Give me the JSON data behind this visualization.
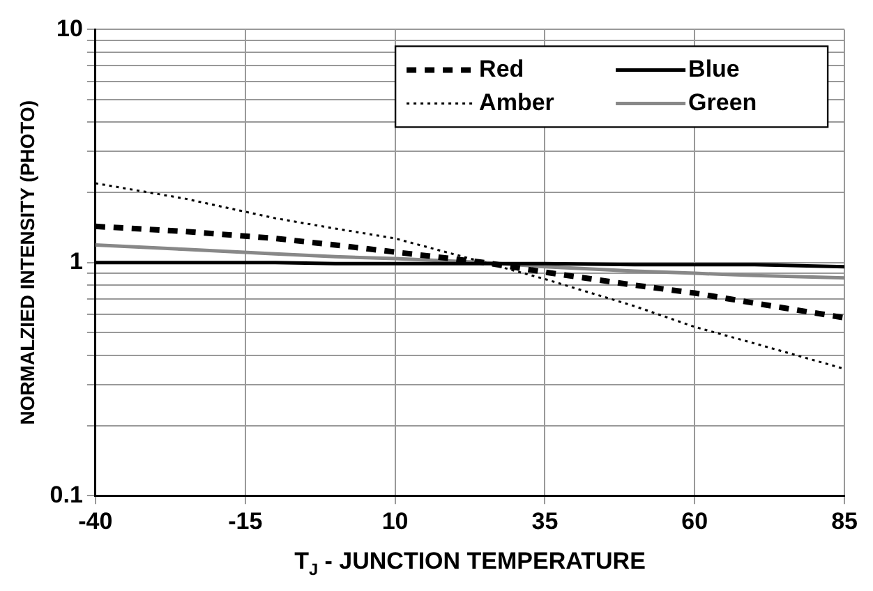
{
  "chart_data": {
    "type": "line",
    "xlabel": "T$_{J}$ - JUNCTION TEMPERATURE",
    "ylabel": "NORMALZIED INTENSITY (PHOTO)",
    "x": [
      -40,
      -25,
      -10,
      0,
      10,
      25,
      35,
      50,
      60,
      70,
      85
    ],
    "series": [
      {
        "name": "Red",
        "color": "#000000",
        "line_style": "dashed",
        "values": [
          1.43,
          1.36,
          1.27,
          1.19,
          1.11,
          1.0,
          0.91,
          0.8,
          0.74,
          0.67,
          0.58
        ]
      },
      {
        "name": "Amber",
        "color": "#000000",
        "line_style": "dotted",
        "values": [
          2.19,
          1.88,
          1.55,
          1.4,
          1.27,
          1.0,
          0.85,
          0.65,
          0.53,
          0.45,
          0.35
        ]
      },
      {
        "name": "Blue",
        "color": "#000000",
        "line_style": "solid",
        "values": [
          1.0,
          1.0,
          1.0,
          0.99,
          0.99,
          0.99,
          0.99,
          0.98,
          0.98,
          0.98,
          0.96
        ]
      },
      {
        "name": "Green",
        "color": "#888888",
        "line_style": "solid",
        "values": [
          1.19,
          1.14,
          1.09,
          1.06,
          1.04,
          1.0,
          0.96,
          0.92,
          0.9,
          0.88,
          0.86
        ]
      }
    ],
    "xlim": [
      -40,
      85
    ],
    "xticks": [
      -40,
      -15,
      10,
      35,
      60,
      85
    ],
    "ylim": [
      0.1,
      10
    ],
    "yticks": [
      0.1,
      {
        "value": 0.2,
        "label": null
      },
      {
        "value": 0.3,
        "label": null
      },
      {
        "value": 0.4,
        "label": null
      },
      {
        "value": 0.5,
        "label": null
      },
      {
        "value": 0.6,
        "label": null
      },
      {
        "value": 0.7,
        "label": null
      },
      {
        "value": 0.8,
        "label": null
      },
      {
        "value": 0.9,
        "label": null
      },
      1,
      {
        "value": 2,
        "label": null
      },
      {
        "value": 3,
        "label": null
      },
      {
        "value": 4,
        "label": null
      },
      {
        "value": 5,
        "label": null
      },
      {
        "value": 6,
        "label": null
      },
      {
        "value": 7,
        "label": null
      },
      {
        "value": 8,
        "label": null
      },
      {
        "value": 9,
        "label": null
      },
      10
    ],
    "log": true,
    "grid": true,
    "legend": "top right",
    "marker": "none"
  }
}
